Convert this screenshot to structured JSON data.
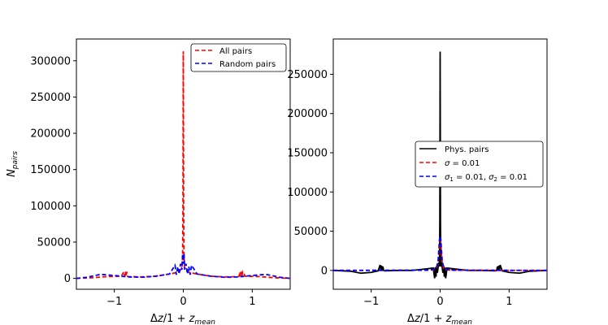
{
  "chart_data": [
    {
      "type": "line",
      "xlabel": "Δz/1 + z_mean",
      "ylabel": "N_pairs",
      "xlim": [
        -1.55,
        1.55
      ],
      "ylim": [
        -15000,
        330000
      ],
      "xticks": [
        -1,
        0,
        1
      ],
      "xtick_labels": [
        "−1",
        "0",
        "1"
      ],
      "yticks": [
        0,
        50000,
        100000,
        150000,
        200000,
        250000,
        300000
      ],
      "ytick_labels": [
        "0",
        "50000",
        "100000",
        "150000",
        "200000",
        "250000",
        "300000"
      ],
      "legend_position": "top-right",
      "series": [
        {
          "name": "All pairs",
          "color": "#ff0000",
          "style": "dashed",
          "x": [
            -1.55,
            -1.3,
            -1.1,
            -0.9,
            -0.86,
            -0.85,
            -0.84,
            -0.83,
            -0.82,
            -0.81,
            -0.8,
            -0.6,
            -0.4,
            -0.2,
            -0.1,
            -0.05,
            -0.02,
            -0.01,
            -0.005,
            0.0,
            0.005,
            0.01,
            0.02,
            0.05,
            0.1,
            0.2,
            0.4,
            0.6,
            0.8,
            0.81,
            0.82,
            0.83,
            0.84,
            0.85,
            0.86,
            0.9,
            1.1,
            1.3,
            1.55
          ],
          "y": [
            0,
            1000,
            2500,
            3000,
            9000,
            3000,
            9000,
            3000,
            9000,
            3000,
            2500,
            2000,
            3000,
            6000,
            8000,
            10000,
            15000,
            30000,
            100000,
            313000,
            100000,
            30000,
            15000,
            10000,
            8000,
            6000,
            3000,
            2000,
            2500,
            3000,
            9000,
            3000,
            9000,
            3000,
            9000,
            3000,
            2500,
            1000,
            0
          ]
        },
        {
          "name": "Random pairs",
          "color": "#0000ff",
          "style": "dashed",
          "x": [
            -1.55,
            -1.4,
            -1.2,
            -1.0,
            -0.8,
            -0.6,
            -0.4,
            -0.2,
            -0.12,
            -0.1,
            -0.08,
            -0.06,
            -0.04,
            -0.02,
            -0.01,
            0.0,
            0.01,
            0.02,
            0.04,
            0.06,
            0.08,
            0.1,
            0.12,
            0.2,
            0.4,
            0.6,
            0.8,
            1.0,
            1.2,
            1.4,
            1.55
          ],
          "y": [
            0,
            1500,
            5500,
            4000,
            2000,
            1500,
            3000,
            6000,
            18000,
            5000,
            16000,
            6000,
            20000,
            12000,
            34000,
            20000,
            34000,
            12000,
            20000,
            6000,
            16000,
            5000,
            18000,
            6000,
            3000,
            1500,
            2000,
            4000,
            5500,
            1500,
            0
          ]
        }
      ]
    },
    {
      "type": "line",
      "xlabel": "Δz/1 + z_mean",
      "ylabel": "",
      "xlim": [
        -1.55,
        1.55
      ],
      "ylim": [
        -24000,
        295000
      ],
      "xticks": [
        -1,
        0,
        1
      ],
      "xtick_labels": [
        "−1",
        "0",
        "1"
      ],
      "yticks": [
        0,
        50000,
        100000,
        150000,
        200000,
        250000
      ],
      "ytick_labels": [
        "0",
        "50000",
        "100000",
        "150000",
        "200000",
        "250000"
      ],
      "legend_position": "center-right",
      "series": [
        {
          "name": "Phys. pairs",
          "color": "#000000",
          "style": "solid",
          "x": [
            -1.55,
            -1.3,
            -1.15,
            -1.0,
            -0.9,
            -0.87,
            -0.86,
            -0.85,
            -0.84,
            -0.83,
            -0.82,
            -0.8,
            -0.6,
            -0.4,
            -0.2,
            -0.1,
            -0.08,
            -0.07,
            -0.06,
            -0.05,
            -0.04,
            -0.02,
            -0.01,
            -0.005,
            0.0,
            0.005,
            0.01,
            0.02,
            0.04,
            0.05,
            0.06,
            0.07,
            0.08,
            0.1,
            0.2,
            0.4,
            0.6,
            0.8,
            0.82,
            0.83,
            0.84,
            0.85,
            0.86,
            0.87,
            0.9,
            1.0,
            1.15,
            1.3,
            1.55
          ],
          "y": [
            0,
            -1000,
            -3500,
            -2500,
            -500,
            7000,
            0,
            6000,
            0,
            5000,
            0,
            -500,
            0,
            0,
            2000,
            3000,
            -10000,
            4000,
            -8000,
            6000,
            -3000,
            10000,
            5000,
            60000,
            279000,
            60000,
            5000,
            10000,
            -3000,
            6000,
            -8000,
            4000,
            -10000,
            3000,
            2000,
            0,
            0,
            -500,
            0,
            5000,
            0,
            6000,
            0,
            7000,
            -500,
            -2500,
            -3500,
            -1000,
            0
          ]
        },
        {
          "name": "σ =  0.01",
          "color": "#ff0000",
          "style": "dashed",
          "x": [
            -1.55,
            -0.2,
            -0.1,
            -0.05,
            -0.03,
            -0.02,
            -0.01,
            0.0,
            0.01,
            0.02,
            0.03,
            0.05,
            0.1,
            0.2,
            1.55
          ],
          "y": [
            0,
            200,
            800,
            3000,
            9000,
            20000,
            33000,
            38000,
            33000,
            20000,
            9000,
            3000,
            800,
            200,
            0
          ]
        },
        {
          "name": "σ₁ =  0.01, σ₂ =  0.01",
          "color": "#0000ff",
          "style": "dashed",
          "x": [
            -1.55,
            -0.2,
            -0.1,
            -0.05,
            -0.03,
            -0.02,
            -0.01,
            0.0,
            0.01,
            0.02,
            0.03,
            0.05,
            0.1,
            0.2,
            1.55
          ],
          "y": [
            0,
            300,
            1200,
            4500,
            12000,
            25000,
            39000,
            44000,
            39000,
            25000,
            12000,
            4500,
            1200,
            300,
            0
          ]
        }
      ]
    }
  ]
}
